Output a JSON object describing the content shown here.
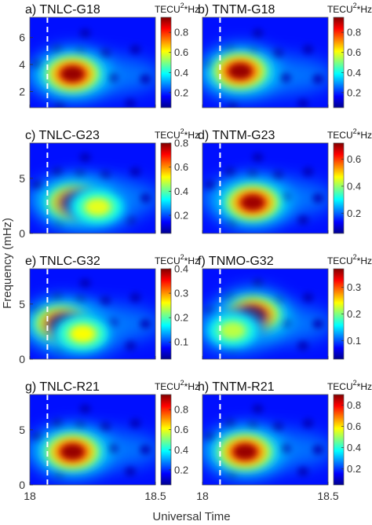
{
  "figure": {
    "xlabel": "Universal Time",
    "ylabel": "Frequency (mHz)",
    "colorbar_unit_prefix": "TECU",
    "colorbar_unit_sup": "2",
    "colorbar_unit_suffix": "*Hz"
  },
  "chart_data": [
    {
      "type": "heatmap",
      "title": "a) TNLC-G18",
      "x_ticks": [
        "",
        ""
      ],
      "y_ticks": [
        "2",
        "4",
        "6"
      ],
      "xlim": [
        18,
        18.5
      ],
      "ylim": [
        0.8,
        7.5
      ],
      "event_time": 18.07,
      "clim": [
        0.05,
        0.95
      ],
      "cbar_ticks": [
        "0.2",
        "0.4",
        "0.6",
        "0.8"
      ],
      "blobs": [
        {
          "t": 18.17,
          "f": 3.3,
          "amp": 0.93
        }
      ]
    },
    {
      "type": "heatmap",
      "title": "b) TNTM-G18",
      "x_ticks": [
        "",
        ""
      ],
      "y_ticks": [],
      "xlim": [
        18,
        18.5
      ],
      "ylim": [
        0.8,
        7.5
      ],
      "event_time": 18.07,
      "clim": [
        0.05,
        0.95
      ],
      "cbar_ticks": [
        "0.2",
        "0.4",
        "0.6",
        "0.8"
      ],
      "blobs": [
        {
          "t": 18.15,
          "f": 3.5,
          "amp": 0.93
        }
      ]
    },
    {
      "type": "heatmap",
      "title": "c) TNLC-G23",
      "x_ticks": [
        "",
        ""
      ],
      "y_ticks": [
        "0",
        "5"
      ],
      "xlim": [
        18,
        18.5
      ],
      "ylim": [
        0,
        8.2
      ],
      "event_time": 18.07,
      "clim": [
        0.05,
        0.8
      ],
      "cbar_ticks": [
        "0.2",
        "0.4",
        "0.6",
        "0.8"
      ],
      "blobs": [
        {
          "t": 18.18,
          "f": 2.8,
          "amp": 0.78
        },
        {
          "t": 18.27,
          "f": 2.4,
          "amp": 0.5
        }
      ]
    },
    {
      "type": "heatmap",
      "title": "d) TNTM-G23",
      "x_ticks": [
        "",
        ""
      ],
      "y_ticks": [],
      "xlim": [
        18,
        18.5
      ],
      "ylim": [
        0,
        8.2
      ],
      "event_time": 18.07,
      "clim": [
        0.05,
        0.72
      ],
      "cbar_ticks": [
        "0.2",
        "0.4",
        "0.6"
      ],
      "blobs": [
        {
          "t": 18.2,
          "f": 2.8,
          "amp": 0.7
        }
      ]
    },
    {
      "type": "heatmap",
      "title": "e) TNLC-G32",
      "x_ticks": [
        "",
        ""
      ],
      "y_ticks": [
        "0",
        "5"
      ],
      "xlim": [
        18,
        18.5
      ],
      "ylim": [
        0,
        8.2
      ],
      "event_time": 18.07,
      "clim": [
        0.03,
        0.4
      ],
      "cbar_ticks": [
        "0.1",
        "0.2",
        "0.3",
        "0.4"
      ],
      "blobs": [
        {
          "t": 18.13,
          "f": 3.2,
          "amp": 0.4
        },
        {
          "t": 18.21,
          "f": 2.3,
          "amp": 0.26
        }
      ]
    },
    {
      "type": "heatmap",
      "title": "f) TNMO-G32",
      "x_ticks": [
        "",
        ""
      ],
      "y_ticks": [],
      "xlim": [
        18,
        18.5
      ],
      "ylim": [
        0,
        8.2
      ],
      "event_time": 18.07,
      "clim": [
        0.03,
        0.37
      ],
      "cbar_ticks": [
        "0.1",
        "0.2",
        "0.3"
      ],
      "blobs": [
        {
          "t": 18.2,
          "f": 4.0,
          "amp": 0.37
        },
        {
          "t": 18.12,
          "f": 2.6,
          "amp": 0.22
        }
      ]
    },
    {
      "type": "heatmap",
      "title": "g) TNLC-R21",
      "x_ticks": [
        "18",
        "18.5"
      ],
      "y_ticks": [
        "0",
        "5"
      ],
      "xlim": [
        18,
        18.5
      ],
      "ylim": [
        0,
        8.2
      ],
      "event_time": 18.07,
      "clim": [
        0.05,
        0.95
      ],
      "cbar_ticks": [
        "0.2",
        "0.4",
        "0.6",
        "0.8"
      ],
      "blobs": [
        {
          "t": 18.17,
          "f": 3.0,
          "amp": 0.93
        }
      ]
    },
    {
      "type": "heatmap",
      "title": "h) TNTM-R21",
      "x_ticks": [
        "18",
        "18.5"
      ],
      "y_ticks": [],
      "xlim": [
        18,
        18.5
      ],
      "ylim": [
        0,
        8.2
      ],
      "event_time": 18.07,
      "clim": [
        0.05,
        0.9
      ],
      "cbar_ticks": [
        "0.2",
        "0.4",
        "0.6",
        "0.8"
      ],
      "blobs": [
        {
          "t": 18.17,
          "f": 3.0,
          "amp": 0.88
        }
      ]
    }
  ]
}
